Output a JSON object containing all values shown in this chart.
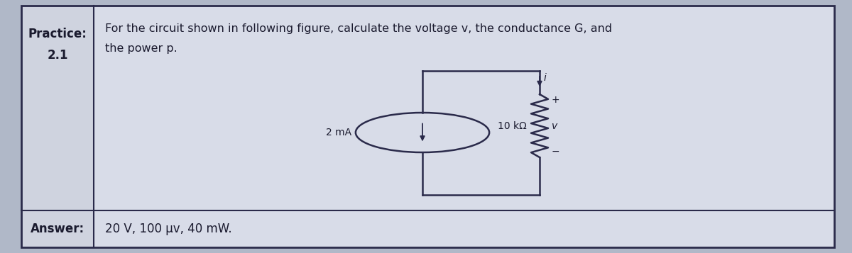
{
  "fig_bg": "#b0b8c8",
  "table_bg": "#ccd0dc",
  "cell_bg_left": "#c8ccd8",
  "cell_bg_right": "#d8dce8",
  "border_color": "#2a2a4a",
  "text_color": "#1a1a2e",
  "practice_label": "Practice:",
  "practice_number": "2.1",
  "problem_text_line1": "For the circuit shown in following figure, calculate the voltage v, the conductance G, and",
  "problem_text_line2": "the power p.",
  "answer_label": "Answer:",
  "answer_text": "20 V, 100 μv, 40 mW.",
  "current_label": "2 mA",
  "resistor_label": "10 kΩ",
  "voltage_plus": "+",
  "voltage_minus": "−",
  "voltage_v": "v",
  "current_i": "i"
}
